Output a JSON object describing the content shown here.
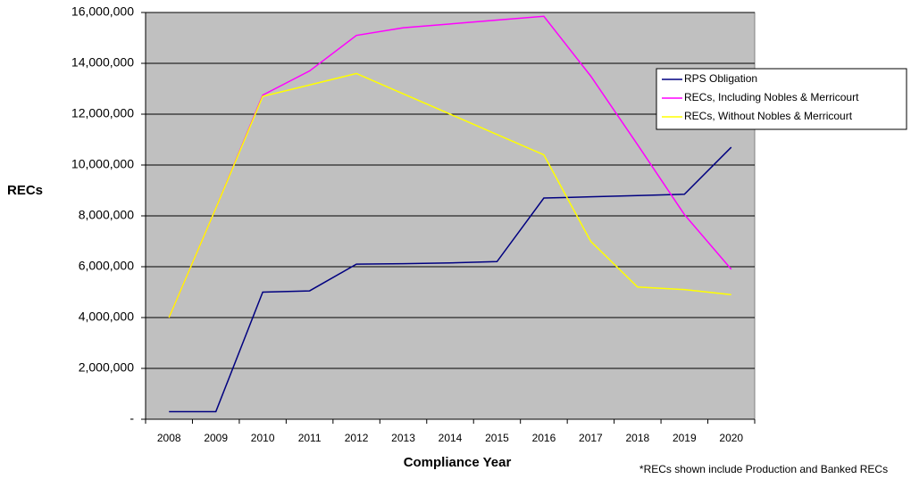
{
  "chart_data": {
    "type": "line",
    "xlabel": "Compliance Year",
    "ylabel": "RECs",
    "footnote": "*RECs shown include Production and Banked RECs",
    "categories": [
      "2008",
      "2009",
      "2010",
      "2011",
      "2012",
      "2013",
      "2014",
      "2015",
      "2016",
      "2017",
      "2018",
      "2019",
      "2020"
    ],
    "series": [
      {
        "name": "RPS Obligation",
        "color": "#000080",
        "values": [
          300000,
          300000,
          5000000,
          5050000,
          6100000,
          6120000,
          6150000,
          6200000,
          8700000,
          8750000,
          8800000,
          8850000,
          10700000
        ]
      },
      {
        "name": "RECs, Including Nobles & Merricourt",
        "color": "#ff00ff",
        "values": [
          4000000,
          8300000,
          12750000,
          13700000,
          15100000,
          15400000,
          15550000,
          15700000,
          15850000,
          13500000,
          10800000,
          8050000,
          5900000
        ]
      },
      {
        "name": "RECs, Without Nobles & Merricourt",
        "color": "#ffff00",
        "values": [
          4000000,
          8300000,
          12700000,
          13150000,
          13600000,
          12800000,
          12000000,
          11200000,
          10400000,
          7000000,
          5200000,
          5100000,
          4900000
        ]
      }
    ],
    "ylim": [
      0,
      16000000
    ],
    "yticks": [
      {
        "value": 0,
        "label": "-"
      },
      {
        "value": 2000000,
        "label": "2,000,000"
      },
      {
        "value": 4000000,
        "label": "4,000,000"
      },
      {
        "value": 6000000,
        "label": "6,000,000"
      },
      {
        "value": 8000000,
        "label": "8,000,000"
      },
      {
        "value": 10000000,
        "label": "10,000,000"
      },
      {
        "value": 12000000,
        "label": "12,000,000"
      },
      {
        "value": 14000000,
        "label": "14,000,000"
      },
      {
        "value": 16000000,
        "label": "16,000,000"
      }
    ],
    "grid": true,
    "legend": "right"
  }
}
